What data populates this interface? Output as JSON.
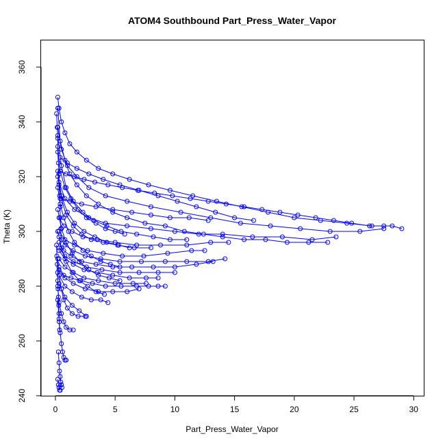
{
  "chart_data": {
    "type": "scatter",
    "title": "ATOM4 Southbound Part_Press_Water_Vapor",
    "xlabel": "Part_Press_Water_Vapor",
    "ylabel": "Theta (K)",
    "xlim": [
      -1.2,
      30.9
    ],
    "ylim": [
      240,
      370
    ],
    "xticks": [
      0,
      5,
      10,
      15,
      20,
      25,
      30
    ],
    "yticks": [
      240,
      260,
      280,
      300,
      320,
      340,
      360
    ],
    "grid": false,
    "marker": "open-circle",
    "connect_points": true,
    "color": "#0000ff",
    "series": [
      {
        "x": [
          0.2,
          0.3,
          0.5,
          0.8,
          1.2,
          1.8,
          2.6,
          3.6,
          4.8,
          6.2,
          7.8,
          9.6,
          11.5,
          13.5,
          15.6,
          17.8,
          20.0,
          22.2,
          24.4,
          26.5,
          28.2,
          29.0
        ],
        "y": [
          349,
          345,
          340,
          336,
          332,
          329,
          326,
          323,
          321,
          319,
          317,
          315,
          313,
          311,
          309,
          307,
          305,
          304,
          303,
          302,
          302,
          301
        ]
      },
      {
        "x": [
          0.2,
          0.5,
          1.0,
          1.8,
          2.8,
          4.2,
          6.0,
          8.0,
          10.5,
          13.0,
          15.5,
          18.0,
          20.5,
          23.0,
          25.5,
          27.5
        ],
        "y": [
          338,
          330,
          324,
          320,
          316,
          313,
          311,
          309,
          307,
          305,
          303,
          302,
          301,
          300,
          300,
          301
        ]
      },
      {
        "x": [
          0.3,
          0.8,
          1.6,
          2.8,
          4.2,
          6.0,
          8.0,
          10.0,
          12.0,
          14.0,
          16.5,
          19.0,
          21.5,
          23.5
        ],
        "y": [
          318,
          312,
          308,
          305,
          303,
          302,
          301,
          300,
          299,
          299,
          298,
          298,
          297,
          298
        ]
      },
      {
        "x": [
          0.3,
          0.7,
          1.4,
          2.3,
          3.5,
          5.0,
          6.8,
          8.8,
          11.0,
          13.0,
          14.5
        ],
        "y": [
          305,
          302,
          300,
          298,
          297,
          296,
          295,
          295,
          295,
          296,
          296
        ]
      },
      {
        "x": [
          0.3,
          0.8,
          1.6,
          2.7,
          4.0,
          5.6,
          7.4,
          9.4,
          11.4,
          12.5
        ],
        "y": [
          300,
          297,
          295,
          293,
          292,
          291,
          291,
          292,
          293,
          293
        ]
      },
      {
        "x": [
          0.3,
          0.8,
          1.5,
          2.5,
          3.8,
          5.4,
          7.2,
          9.2,
          11.0,
          12.8,
          14.2
        ],
        "y": [
          298,
          295,
          293,
          291,
          290,
          289,
          289,
          289,
          289,
          289,
          290
        ]
      },
      {
        "x": [
          0.3,
          0.7,
          1.3,
          2.2,
          3.4,
          4.8,
          6.4,
          8.2,
          10.0,
          11.8,
          13.2
        ],
        "y": [
          296,
          293,
          291,
          289,
          288,
          287,
          287,
          287,
          287,
          288,
          289
        ]
      },
      {
        "x": [
          0.3,
          0.8,
          1.5,
          2.6,
          3.9,
          5.4,
          7.0,
          8.6,
          10.0
        ],
        "y": [
          294,
          291,
          289,
          287,
          286,
          285,
          285,
          285,
          285
        ]
      },
      {
        "x": [
          0.3,
          0.8,
          1.5,
          2.4,
          3.5,
          4.8,
          6.2,
          7.6,
          8.6
        ],
        "y": [
          293,
          290,
          288,
          286,
          285,
          284,
          283,
          283,
          283
        ]
      },
      {
        "x": [
          0.3,
          0.8,
          1.5,
          2.4,
          3.6,
          5.0,
          6.5,
          7.6
        ],
        "y": [
          290,
          287,
          285,
          283,
          282,
          281,
          281,
          281
        ]
      },
      {
        "x": [
          0.3,
          0.7,
          1.3,
          2.1,
          3.1,
          4.2,
          5.5,
          6.8,
          7.8,
          8.6,
          9.2
        ],
        "y": [
          287,
          284,
          283,
          282,
          281,
          280,
          280,
          280,
          280,
          280,
          280
        ]
      },
      {
        "x": [
          0.3,
          0.8,
          1.5,
          2.5,
          3.6,
          4.8,
          6.0,
          7.0
        ],
        "y": [
          286,
          283,
          281,
          279,
          278,
          278,
          278,
          279
        ]
      },
      {
        "x": [
          0.3,
          0.8,
          1.4,
          2.2,
          3.0,
          3.8,
          4.4
        ],
        "y": [
          284,
          280,
          278,
          276,
          275,
          275,
          274
        ]
      },
      {
        "x": [
          0.3,
          0.8,
          1.4,
          2.0,
          2.6
        ],
        "y": [
          281,
          276,
          273,
          271,
          269
        ]
      },
      {
        "x": [
          0.2,
          0.4,
          0.8,
          1.2,
          1.8,
          2.6,
          3.6,
          4.8,
          6.0,
          7.5,
          9.2,
          10.8,
          12.4,
          14.0,
          15.8,
          17.6,
          19.4,
          21.2,
          22.8
        ],
        "y": [
          345,
          333,
          326,
          321,
          317,
          313,
          310,
          307,
          305,
          303,
          302,
          300,
          299,
          298,
          297,
          297,
          296,
          296,
          296
        ]
      },
      {
        "x": [
          0.2,
          0.5,
          0.9,
          1.5,
          2.3,
          3.2,
          4.3,
          5.5,
          6.8,
          8.2,
          9.6,
          11.0
        ],
        "y": [
          335,
          324,
          316,
          311,
          307,
          304,
          302,
          300,
          299,
          298,
          297,
          297
        ]
      },
      {
        "x": [
          0.2,
          0.5,
          0.9,
          1.5,
          2.2,
          3.0,
          4.0,
          5.2,
          6.6,
          8.0
        ],
        "y": [
          320,
          312,
          306,
          302,
          299,
          297,
          296,
          295,
          294,
          294
        ]
      },
      {
        "x": [
          0.2,
          0.4,
          0.7,
          1.1,
          1.6,
          2.3,
          3.0,
          3.8,
          4.6,
          5.4
        ],
        "y": [
          316,
          310,
          305,
          300,
          296,
          293,
          291,
          289,
          288,
          287
        ]
      },
      {
        "x": [
          0.2,
          0.5,
          0.9,
          1.4,
          2.0,
          2.8,
          3.6,
          4.5,
          5.4
        ],
        "y": [
          308,
          301,
          296,
          292,
          289,
          286,
          284,
          283,
          282
        ]
      },
      {
        "x": [
          0.2,
          0.5,
          0.9,
          1.4,
          2.0,
          2.7,
          3.4,
          4.1
        ],
        "y": [
          300,
          294,
          289,
          285,
          282,
          280,
          278,
          277
        ]
      },
      {
        "x": [
          0.2,
          0.5,
          1.0,
          1.6,
          2.4,
          3.3,
          4.3,
          5.3,
          6.2
        ],
        "y": [
          322,
          313,
          307,
          303,
          300,
          298,
          296,
          295,
          294
        ]
      },
      {
        "x": [
          0.2,
          0.4,
          0.8,
          1.3,
          1.9,
          2.6,
          3.4,
          4.2,
          5.0,
          5.8
        ],
        "y": [
          331,
          322,
          316,
          312,
          308,
          305,
          303,
          301,
          300,
          299
        ]
      },
      {
        "x": [
          0.2,
          0.3,
          0.5,
          0.7,
          1.0,
          1.4,
          1.9,
          2.5
        ],
        "y": [
          290,
          284,
          279,
          275,
          272,
          270,
          269,
          269
        ]
      },
      {
        "x": [
          0.2,
          0.3,
          0.5,
          0.7,
          0.9,
          1.2,
          1.5
        ],
        "y": [
          280,
          274,
          270,
          267,
          265,
          264,
          264
        ]
      },
      {
        "x": [
          0.2,
          0.3,
          0.4,
          0.5,
          0.6,
          0.7,
          0.8,
          0.9
        ],
        "y": [
          275,
          268,
          263,
          259,
          256,
          254,
          253,
          253
        ]
      },
      {
        "x": [
          0.25,
          0.3,
          0.35,
          0.4,
          0.45,
          0.5,
          0.55
        ],
        "y": [
          256,
          252,
          249,
          247,
          245,
          244,
          243
        ]
      },
      {
        "x": [
          0.2,
          0.25,
          0.3,
          0.35,
          0.4
        ],
        "y": [
          246,
          244,
          243,
          242,
          242
        ]
      },
      {
        "x": [
          0.1,
          0.15,
          0.2,
          0.2,
          0.25,
          0.3,
          0.3,
          0.35,
          0.4,
          0.4,
          0.45,
          0.5
        ],
        "y": [
          343,
          338,
          334,
          329,
          325,
          321,
          317,
          313,
          309,
          305,
          301,
          297
        ]
      },
      {
        "x": [
          0.1,
          0.12,
          0.15,
          0.18,
          0.2,
          0.22,
          0.25,
          0.28,
          0.3,
          0.32,
          0.35
        ],
        "y": [
          295,
          291,
          288,
          285,
          282,
          279,
          276,
          273,
          270,
          267,
          264
        ]
      },
      {
        "x": [
          0.4,
          0.9,
          1.6,
          2.4,
          3.3,
          4.4,
          5.6,
          6.9,
          8.3,
          9.8,
          11.3,
          12.8,
          14.3,
          15.8,
          17.3,
          18.8,
          20.3,
          21.8,
          23.3,
          24.8,
          26.3,
          27.5
        ],
        "y": [
          322,
          321,
          320,
          319,
          318,
          317,
          316,
          315,
          314,
          313,
          312,
          311,
          310,
          309,
          308,
          307,
          306,
          305,
          304,
          303,
          302,
          302
        ]
      },
      {
        "x": [
          0.4,
          1.0,
          1.8,
          2.8,
          4.0,
          5.4,
          7.0,
          8.6,
          10.2,
          11.8,
          13.4,
          15.0,
          16.6
        ],
        "y": [
          327,
          325,
          323,
          321,
          319,
          317,
          315,
          313,
          311,
          309,
          307,
          305,
          304
        ]
      },
      {
        "x": [
          0.4,
          1.2,
          2.2,
          3.4,
          4.8,
          6.4,
          8.0,
          9.6,
          11.2,
          12.8
        ],
        "y": [
          312,
          311,
          310,
          309,
          308,
          307,
          306,
          305,
          305,
          304
        ]
      }
    ]
  }
}
